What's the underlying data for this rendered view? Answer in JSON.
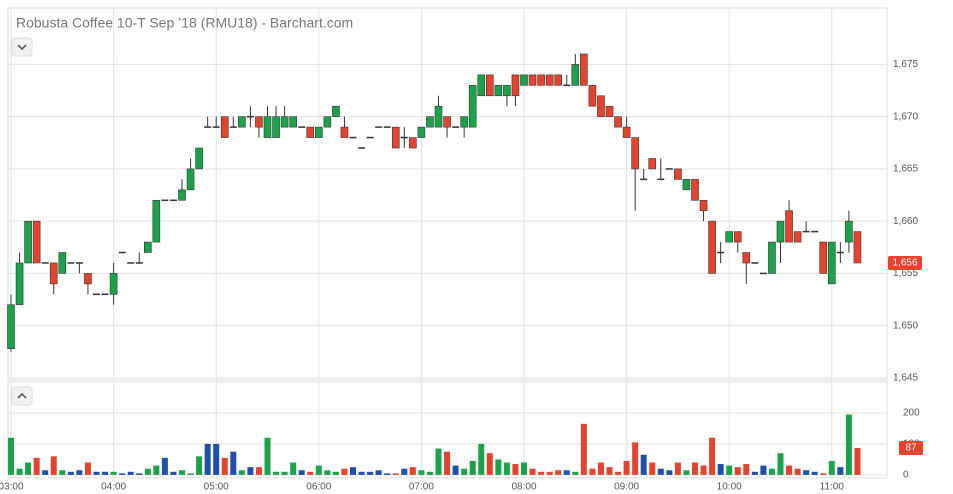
{
  "chart_data": {
    "type": "candlestick",
    "title": "Robusta Coffee 10-T Sep ’18 (RMU18) - Barchart.com",
    "categories": [
      "03:00",
      null,
      null,
      null,
      null,
      null,
      null,
      null,
      null,
      null,
      null,
      null,
      "04:00",
      null,
      null,
      null,
      null,
      null,
      null,
      null,
      null,
      null,
      null,
      null,
      "05:00",
      null,
      null,
      null,
      null,
      null,
      null,
      null,
      null,
      null,
      null,
      null,
      "06:00",
      null,
      null,
      null,
      null,
      null,
      null,
      null,
      null,
      null,
      null,
      null,
      "07:00",
      null,
      null,
      null,
      null,
      null,
      null,
      null,
      null,
      null,
      null,
      null,
      "08:00",
      null,
      null,
      null,
      null,
      null,
      null,
      null,
      null,
      null,
      null,
      null,
      "09:00",
      null,
      null,
      null,
      null,
      null,
      null,
      null,
      null,
      null,
      null,
      null,
      "10:00",
      null,
      null,
      null,
      null,
      null,
      null,
      null,
      null,
      null,
      null,
      null,
      "11:00",
      null,
      null,
      null
    ],
    "open": [
      1647.8,
      1652,
      1656,
      1660,
      1656,
      1656,
      1655,
      1656,
      1656,
      1655,
      1653,
      1653,
      1653,
      1657,
      1656,
      1656,
      1657,
      1658,
      1662,
      1662,
      1662,
      1663,
      1665,
      1669,
      1669,
      1670,
      1669,
      1669,
      1670,
      1670,
      1668,
      1668,
      1669,
      1669,
      1669,
      1669,
      1668,
      1669,
      1670,
      1669,
      1668,
      1667,
      1668,
      1669,
      1669,
      1669,
      1668,
      1668,
      1668,
      1669,
      1669,
      1670,
      1669,
      1669,
      1669,
      1672,
      1674,
      1672,
      1672,
      1674,
      1673,
      1674,
      1674,
      1674,
      1674,
      1673,
      1673,
      1676,
      1673,
      1672,
      1671,
      1670,
      1669,
      1668,
      1664,
      1666,
      1664,
      1665,
      1665,
      1663,
      1664,
      1662,
      1660,
      1657,
      1658,
      1659,
      1657,
      1656,
      1655,
      1655,
      1658,
      1661,
      1659,
      1659,
      1659,
      1658,
      1654,
      1657,
      1658,
      1659
    ],
    "high": [
      1653,
      1657,
      1660,
      1660,
      1656,
      1656,
      1657,
      1656,
      1656,
      1655,
      1653,
      1653,
      1656,
      1657,
      1656,
      1657,
      1658,
      1662,
      1662,
      1662,
      1664,
      1666,
      1667,
      1670,
      1670,
      1670,
      1670,
      1670,
      1671,
      1670,
      1671,
      1671,
      1671,
      1670,
      1669,
      1669,
      1669,
      1670,
      1671,
      1670,
      1668,
      1667,
      1668,
      1669,
      1669,
      1669,
      1669,
      1668,
      1669,
      1670,
      1672,
      1670,
      1669,
      1670,
      1673,
      1674,
      1674,
      1673,
      1673,
      1674,
      1674,
      1674,
      1674,
      1674,
      1674,
      1674,
      1676,
      1676,
      1673,
      1672,
      1671,
      1670,
      1670,
      1668,
      1665,
      1666,
      1666,
      1665,
      1665,
      1664,
      1664,
      1662,
      1660,
      1658,
      1659,
      1659,
      1657,
      1656,
      1655,
      1658,
      1660,
      1662,
      1659,
      1660,
      1659,
      1658,
      1658,
      1658,
      1661,
      1659
    ],
    "low": [
      1647.5,
      1652,
      1656,
      1656,
      1656,
      1653,
      1655,
      1656,
      1655,
      1653,
      1653,
      1653,
      1652,
      1657,
      1656,
      1656,
      1657,
      1658,
      1662,
      1662,
      1662,
      1663,
      1665,
      1669,
      1669,
      1668,
      1669,
      1669,
      1669,
      1668,
      1668,
      1668,
      1669,
      1669,
      1669,
      1668,
      1668,
      1669,
      1670,
      1668,
      1668,
      1667,
      1668,
      1669,
      1669,
      1667,
      1667,
      1667,
      1668,
      1669,
      1669,
      1668,
      1669,
      1668,
      1669,
      1672,
      1672,
      1672,
      1671,
      1671,
      1673,
      1673,
      1673,
      1673,
      1673,
      1673,
      1673,
      1673,
      1671,
      1670,
      1670,
      1669,
      1668,
      1661,
      1664,
      1665,
      1664,
      1665,
      1664,
      1663,
      1662,
      1660,
      1655,
      1656,
      1658,
      1657,
      1654,
      1656,
      1655,
      1655,
      1656,
      1658,
      1658,
      1659,
      1659,
      1655,
      1654,
      1656,
      1657,
      1656
    ],
    "close": [
      1652,
      1656,
      1660,
      1656,
      1656,
      1654,
      1657,
      1656,
      1656,
      1654,
      1653,
      1653,
      1655,
      1657,
      1656,
      1656,
      1658,
      1662,
      1662,
      1662,
      1663,
      1665,
      1667,
      1669,
      1669,
      1668,
      1669,
      1670,
      1670,
      1669,
      1670,
      1670,
      1670,
      1670,
      1669,
      1668,
      1669,
      1670,
      1671,
      1668,
      1668,
      1667,
      1668,
      1669,
      1669,
      1667,
      1668,
      1667,
      1669,
      1670,
      1671,
      1669,
      1669,
      1670,
      1673,
      1674,
      1672,
      1673,
      1673,
      1672,
      1674,
      1673,
      1673,
      1673,
      1673,
      1673,
      1675,
      1673,
      1671,
      1670,
      1670,
      1669,
      1668,
      1665,
      1664,
      1665,
      1664,
      1665,
      1664,
      1664,
      1662,
      1661,
      1655,
      1657,
      1659,
      1658,
      1656,
      1656,
      1655,
      1658,
      1660,
      1658,
      1658,
      1659,
      1659,
      1655,
      1658,
      1657,
      1660,
      1656
    ],
    "up_color": "#1ba34b",
    "down_color": "#e5432d",
    "flat_color": "#1f4fa8",
    "ylim": [
      1644.8,
      1680.4
    ],
    "yticks": [
      {
        "value": 1645,
        "label": "1,645"
      },
      {
        "value": 1650,
        "label": "1,650"
      },
      {
        "value": 1655,
        "label": "1,655"
      },
      {
        "value": 1660,
        "label": "1,660"
      },
      {
        "value": 1665,
        "label": "1,665"
      },
      {
        "value": 1670,
        "label": "1,670"
      },
      {
        "value": 1675,
        "label": "1,675"
      }
    ],
    "last_price": {
      "value": 1656,
      "label": "1,656"
    },
    "grid": true,
    "volume": {
      "values": [
        120,
        20,
        40,
        55,
        15,
        60,
        15,
        10,
        15,
        40,
        10,
        10,
        10,
        5,
        10,
        5,
        20,
        30,
        55,
        10,
        15,
        5,
        60,
        100,
        100,
        55,
        75,
        15,
        25,
        25,
        120,
        10,
        10,
        40,
        15,
        10,
        30,
        15,
        10,
        20,
        25,
        10,
        10,
        15,
        5,
        5,
        20,
        25,
        15,
        10,
        85,
        75,
        30,
        20,
        45,
        100,
        70,
        50,
        40,
        35,
        40,
        20,
        10,
        10,
        15,
        15,
        10,
        165,
        20,
        40,
        25,
        10,
        45,
        105,
        65,
        40,
        20,
        15,
        40,
        15,
        40,
        30,
        120,
        35,
        30,
        25,
        35,
        10,
        30,
        20,
        70,
        30,
        20,
        15,
        10,
        5,
        45,
        25,
        195,
        87
      ],
      "ylim": [
        -10,
        300
      ],
      "yticks": [
        0,
        100,
        200
      ]
    }
  }
}
